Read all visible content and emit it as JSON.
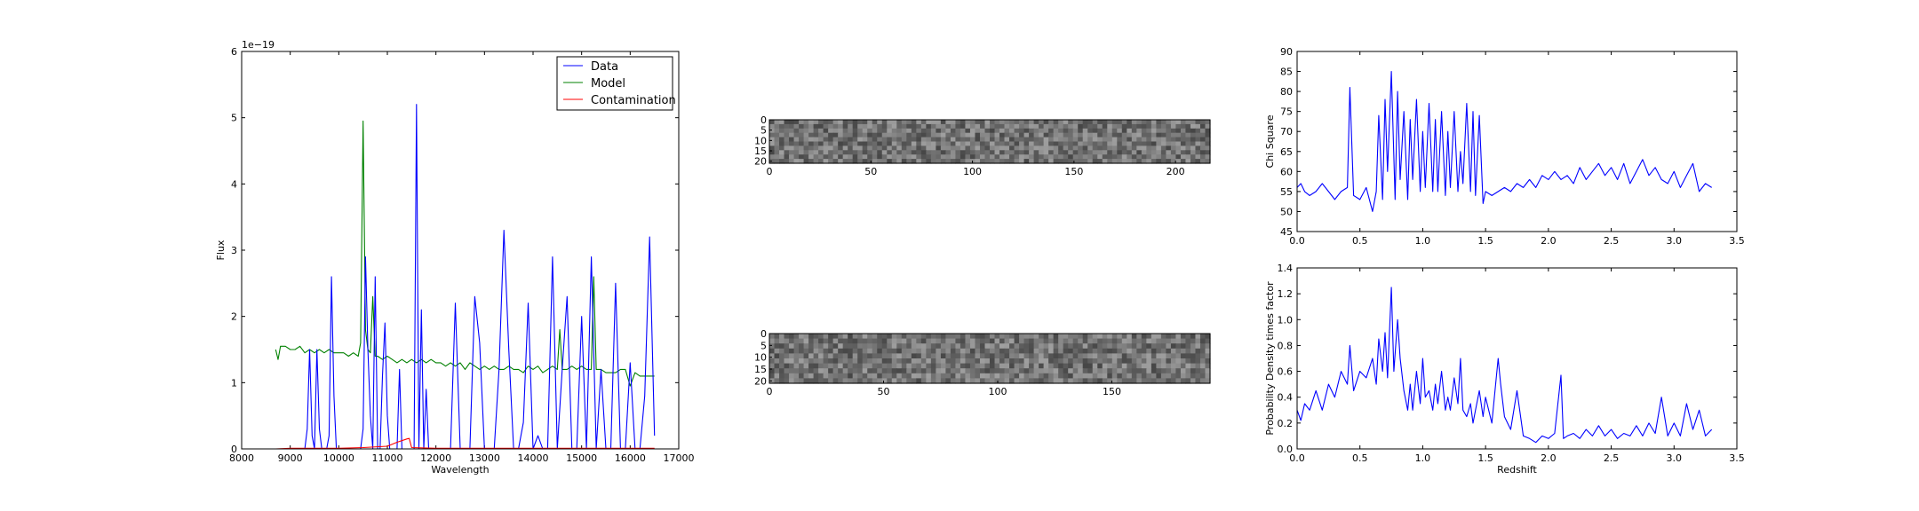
{
  "colors": {
    "data": "#0000ff",
    "model": "#008000",
    "contamination": "#ff0000",
    "axes": "#000000"
  },
  "chart_data": [
    {
      "type": "line",
      "xlabel": "Wavelength",
      "ylabel": "Flux",
      "offset_text": "1e−19",
      "xlim": [
        8000,
        17000
      ],
      "ylim": [
        0,
        6
      ],
      "xticks": [
        8000,
        9000,
        10000,
        11000,
        12000,
        13000,
        14000,
        15000,
        16000,
        17000
      ],
      "yticks": [
        0,
        1,
        2,
        3,
        4,
        5,
        6
      ],
      "legend": {
        "placement": "top-right",
        "entries": [
          "Data",
          "Model",
          "Contamination"
        ]
      },
      "series": [
        {
          "name": "Data",
          "x": [
            8700,
            8800,
            8900,
            9000,
            9100,
            9200,
            9300,
            9350,
            9400,
            9450,
            9500,
            9550,
            9600,
            9650,
            9700,
            9750,
            9800,
            9850,
            9900,
            9950,
            10000,
            10050,
            10100,
            10150,
            10200,
            10250,
            10300,
            10350,
            10400,
            10450,
            10500,
            10550,
            10600,
            10650,
            10700,
            10750,
            10800,
            10850,
            10900,
            10950,
            11000,
            11050,
            11100,
            11150,
            11200,
            11250,
            11300,
            11350,
            11400,
            11450,
            11500,
            11550,
            11600,
            11650,
            11700,
            11750,
            11800,
            11850,
            11900,
            11950,
            12000,
            12100,
            12200,
            12300,
            12400,
            12500,
            12600,
            12700,
            12800,
            12900,
            13000,
            13100,
            13200,
            13300,
            13400,
            13500,
            13600,
            13700,
            13800,
            13900,
            14000,
            14100,
            14200,
            14300,
            14400,
            14500,
            14600,
            14700,
            14800,
            14900,
            15000,
            15100,
            15200,
            15300,
            15400,
            15500,
            15600,
            15700,
            15800,
            15900,
            16000,
            16100,
            16200,
            16300,
            16400,
            16500
          ],
          "y": [
            0,
            0,
            0,
            0,
            0,
            0,
            0,
            0.3,
            1.5,
            0.2,
            0,
            1.5,
            0.3,
            0,
            0,
            0,
            0.2,
            2.6,
            0.8,
            0,
            0,
            0,
            0,
            0,
            0,
            0,
            0,
            0,
            0,
            0,
            0.3,
            2.9,
            1.5,
            0.5,
            0,
            2.6,
            0,
            0,
            1.1,
            1.9,
            0.5,
            0,
            0,
            0,
            0,
            1.2,
            0,
            0,
            0,
            0,
            0,
            0,
            5.2,
            0,
            2.1,
            0,
            0.9,
            0,
            0,
            0,
            0,
            0,
            0,
            0,
            2.2,
            0,
            0,
            0,
            2.3,
            1.6,
            0,
            0,
            0,
            1.2,
            3.3,
            1.5,
            0,
            0,
            0.4,
            2.2,
            0,
            0.2,
            0,
            0,
            2.9,
            0,
            1.2,
            2.3,
            0,
            0,
            2.0,
            0,
            2.9,
            0,
            1.2,
            0,
            0,
            2.5,
            0,
            0,
            1.3,
            0,
            0,
            0.8,
            3.2,
            0.2
          ]
        },
        {
          "name": "Model",
          "x": [
            8700,
            8750,
            8800,
            8900,
            9000,
            9100,
            9200,
            9300,
            9400,
            9500,
            9600,
            9700,
            9800,
            9900,
            10000,
            10100,
            10200,
            10300,
            10400,
            10450,
            10500,
            10550,
            10600,
            10650,
            10700,
            10750,
            10800,
            10900,
            11000,
            11100,
            11200,
            11300,
            11400,
            11500,
            11600,
            11700,
            11800,
            11900,
            12000,
            12100,
            12200,
            12300,
            12400,
            12500,
            12600,
            12700,
            12800,
            12900,
            13000,
            13100,
            13200,
            13300,
            13400,
            13500,
            13600,
            13700,
            13800,
            13900,
            14000,
            14100,
            14200,
            14300,
            14400,
            14500,
            14550,
            14600,
            14700,
            14800,
            14900,
            15000,
            15100,
            15200,
            15250,
            15300,
            15400,
            15500,
            15600,
            15700,
            15800,
            15900,
            16000,
            16100,
            16200,
            16300,
            16400,
            16500
          ],
          "y": [
            1.5,
            1.35,
            1.55,
            1.55,
            1.5,
            1.5,
            1.55,
            1.45,
            1.5,
            1.45,
            1.5,
            1.45,
            1.5,
            1.45,
            1.45,
            1.45,
            1.4,
            1.45,
            1.4,
            1.6,
            4.95,
            1.8,
            1.5,
            1.45,
            2.3,
            1.4,
            1.4,
            1.35,
            1.4,
            1.35,
            1.3,
            1.35,
            1.3,
            1.35,
            1.3,
            1.35,
            1.3,
            1.35,
            1.3,
            1.3,
            1.25,
            1.3,
            1.25,
            1.3,
            1.2,
            1.3,
            1.25,
            1.2,
            1.25,
            1.2,
            1.25,
            1.2,
            1.2,
            1.25,
            1.2,
            1.2,
            1.15,
            1.25,
            1.2,
            1.25,
            1.15,
            1.2,
            1.25,
            1.2,
            1.8,
            1.2,
            1.2,
            1.25,
            1.2,
            1.25,
            1.2,
            1.2,
            2.6,
            1.2,
            1.2,
            1.15,
            1.15,
            1.15,
            1.2,
            1.2,
            0.95,
            1.15,
            1.1,
            1.1,
            1.1,
            1.1
          ]
        },
        {
          "name": "Contamination",
          "x": [
            8700,
            9000,
            9500,
            10000,
            10500,
            11000,
            11200,
            11400,
            11450,
            11500,
            12000,
            13000,
            14000,
            15000,
            16000,
            16500
          ],
          "y": [
            0,
            0.01,
            0.01,
            0.01,
            0.02,
            0.04,
            0.1,
            0.15,
            0.16,
            0.02,
            0.01,
            0.01,
            0.01,
            0.01,
            0.01,
            0.01
          ]
        }
      ]
    },
    {
      "type": "heatmap",
      "xlim": [
        0,
        217
      ],
      "ylim": [
        0,
        21
      ],
      "xticks": [
        0,
        50,
        100,
        150,
        200
      ],
      "yticks": [
        0,
        5,
        10,
        15,
        20
      ],
      "colormap": "gray"
    },
    {
      "type": "heatmap",
      "xlim": [
        0,
        193
      ],
      "ylim": [
        0,
        21
      ],
      "xticks": [
        0,
        50,
        100,
        150
      ],
      "yticks": [
        0,
        5,
        10,
        15,
        20
      ],
      "colormap": "gray"
    },
    {
      "type": "line",
      "xlabel": "",
      "ylabel": "Chi Square",
      "xlim": [
        0.0,
        3.5
      ],
      "ylim": [
        45,
        90
      ],
      "xticks": [
        0.0,
        0.5,
        1.0,
        1.5,
        2.0,
        2.5,
        3.0,
        3.5
      ],
      "yticks": [
        45,
        50,
        55,
        60,
        65,
        70,
        75,
        80,
        85,
        90
      ],
      "series": [
        {
          "x": [
            0.0,
            0.03,
            0.06,
            0.1,
            0.15,
            0.2,
            0.25,
            0.3,
            0.35,
            0.4,
            0.42,
            0.45,
            0.5,
            0.55,
            0.6,
            0.63,
            0.65,
            0.68,
            0.7,
            0.72,
            0.75,
            0.78,
            0.8,
            0.82,
            0.85,
            0.88,
            0.9,
            0.92,
            0.95,
            0.98,
            1.0,
            1.02,
            1.05,
            1.08,
            1.1,
            1.12,
            1.15,
            1.18,
            1.2,
            1.22,
            1.25,
            1.28,
            1.3,
            1.32,
            1.35,
            1.38,
            1.4,
            1.42,
            1.45,
            1.48,
            1.5,
            1.55,
            1.6,
            1.65,
            1.7,
            1.75,
            1.8,
            1.85,
            1.9,
            1.95,
            2.0,
            2.05,
            2.1,
            2.15,
            2.2,
            2.25,
            2.3,
            2.35,
            2.4,
            2.45,
            2.5,
            2.55,
            2.6,
            2.65,
            2.7,
            2.75,
            2.8,
            2.85,
            2.9,
            2.95,
            3.0,
            3.05,
            3.1,
            3.15,
            3.2,
            3.25,
            3.3
          ],
          "y": [
            56,
            57,
            55,
            54,
            55,
            57,
            55,
            53,
            55,
            56,
            81,
            54,
            53,
            56,
            50,
            55,
            74,
            53,
            78,
            60,
            85,
            53,
            80,
            58,
            75,
            53,
            73,
            58,
            78,
            55,
            70,
            56,
            77,
            55,
            73,
            55,
            75,
            54,
            70,
            56,
            75,
            55,
            65,
            57,
            77,
            55,
            75,
            54,
            74,
            52,
            55,
            54,
            55,
            56,
            55,
            57,
            56,
            58,
            56,
            59,
            58,
            60,
            58,
            59,
            57,
            61,
            58,
            60,
            62,
            59,
            61,
            58,
            62,
            57,
            60,
            63,
            59,
            61,
            58,
            57,
            60,
            56,
            59,
            62,
            55,
            57,
            56
          ]
        }
      ]
    },
    {
      "type": "line",
      "xlabel": "Redshift",
      "ylabel": "Probability Density times factor",
      "xlim": [
        0.0,
        3.5
      ],
      "ylim": [
        0.0,
        1.4
      ],
      "xticks": [
        0.0,
        0.5,
        1.0,
        1.5,
        2.0,
        2.5,
        3.0,
        3.5
      ],
      "yticks": [
        0.0,
        0.2,
        0.4,
        0.6,
        0.8,
        1.0,
        1.2,
        1.4
      ],
      "series": [
        {
          "x": [
            0.0,
            0.03,
            0.06,
            0.1,
            0.15,
            0.2,
            0.25,
            0.3,
            0.35,
            0.4,
            0.42,
            0.45,
            0.5,
            0.55,
            0.6,
            0.63,
            0.65,
            0.68,
            0.7,
            0.72,
            0.75,
            0.77,
            0.8,
            0.82,
            0.85,
            0.88,
            0.9,
            0.92,
            0.95,
            0.98,
            1.0,
            1.02,
            1.05,
            1.08,
            1.1,
            1.12,
            1.15,
            1.18,
            1.2,
            1.22,
            1.25,
            1.28,
            1.3,
            1.32,
            1.35,
            1.38,
            1.4,
            1.42,
            1.45,
            1.48,
            1.5,
            1.55,
            1.6,
            1.62,
            1.65,
            1.7,
            1.75,
            1.8,
            1.85,
            1.9,
            1.95,
            2.0,
            2.05,
            2.1,
            2.12,
            2.15,
            2.2,
            2.25,
            2.3,
            2.35,
            2.4,
            2.45,
            2.5,
            2.55,
            2.6,
            2.65,
            2.7,
            2.75,
            2.8,
            2.85,
            2.9,
            2.95,
            3.0,
            3.05,
            3.1,
            3.15,
            3.2,
            3.25,
            3.3
          ],
          "y": [
            0.3,
            0.22,
            0.35,
            0.3,
            0.45,
            0.3,
            0.5,
            0.4,
            0.6,
            0.5,
            0.8,
            0.45,
            0.6,
            0.55,
            0.7,
            0.5,
            0.85,
            0.6,
            0.9,
            0.55,
            1.25,
            0.6,
            1.0,
            0.7,
            0.45,
            0.3,
            0.5,
            0.3,
            0.6,
            0.35,
            0.7,
            0.4,
            0.45,
            0.3,
            0.5,
            0.35,
            0.6,
            0.3,
            0.4,
            0.3,
            0.55,
            0.35,
            0.7,
            0.3,
            0.25,
            0.35,
            0.2,
            0.3,
            0.45,
            0.25,
            0.4,
            0.2,
            0.7,
            0.5,
            0.25,
            0.15,
            0.45,
            0.1,
            0.08,
            0.05,
            0.1,
            0.08,
            0.12,
            0.57,
            0.08,
            0.1,
            0.12,
            0.08,
            0.15,
            0.1,
            0.18,
            0.1,
            0.15,
            0.08,
            0.12,
            0.1,
            0.18,
            0.1,
            0.2,
            0.12,
            0.4,
            0.1,
            0.2,
            0.1,
            0.35,
            0.15,
            0.3,
            0.1,
            0.15
          ]
        }
      ]
    }
  ]
}
